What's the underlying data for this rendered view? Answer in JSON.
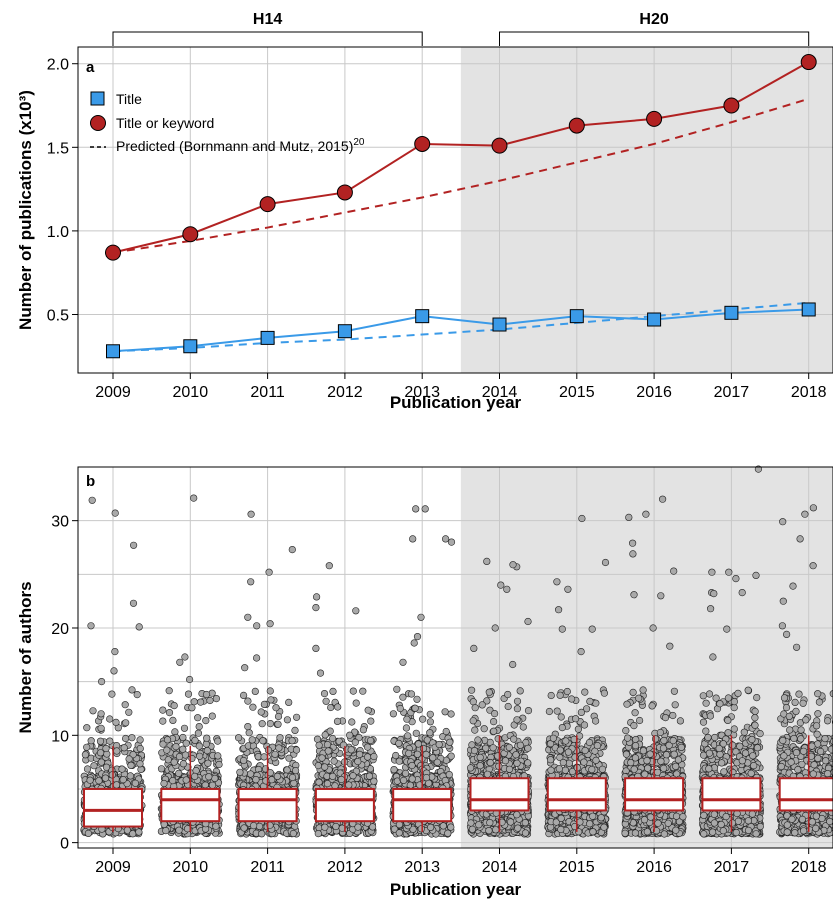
{
  "chart_data": [
    {
      "panel": "a",
      "type": "line",
      "xlabel": "Publication year",
      "ylabel": "Number of publications (x10³)",
      "x": [
        2009,
        2010,
        2011,
        2012,
        2013,
        2014,
        2015,
        2016,
        2017,
        2018
      ],
      "ylim": [
        0.15,
        2.1
      ],
      "yticks": [
        0.5,
        1.0,
        1.5,
        2.0
      ],
      "ytick_labels": [
        "0.5",
        "1.0",
        "1.5",
        "2.0"
      ],
      "grid": true,
      "shaded_range": [
        2013.5,
        2018.3
      ],
      "brackets": [
        {
          "label": "H14",
          "from": 2009,
          "to": 2013
        },
        {
          "label": "H20",
          "from": 2014,
          "to": 2018
        }
      ],
      "legend_position": "top-left",
      "series": [
        {
          "name": "Title",
          "marker": "square",
          "color": "#3a9ae8",
          "values": [
            0.28,
            0.31,
            0.36,
            0.4,
            0.49,
            0.44,
            0.49,
            0.47,
            0.51,
            0.53
          ]
        },
        {
          "name": "Title or keyword",
          "marker": "circle",
          "color": "#b22222",
          "values": [
            0.87,
            0.98,
            1.16,
            1.23,
            1.52,
            1.51,
            1.63,
            1.67,
            1.75,
            2.01
          ]
        },
        {
          "role": "predicted",
          "style": "dashed",
          "color": "#b22222",
          "values": [
            0.87,
            0.94,
            1.02,
            1.11,
            1.2,
            1.3,
            1.41,
            1.52,
            1.65,
            1.79
          ]
        },
        {
          "role": "predicted",
          "style": "dashed",
          "color": "#3a9ae8",
          "values": [
            0.28,
            0.3,
            0.33,
            0.35,
            0.38,
            0.41,
            0.45,
            0.49,
            0.53,
            0.57
          ]
        }
      ],
      "legend": {
        "title_label": "Title",
        "keyword_label": "Title or keyword",
        "predicted_label": "Predicted (Bornmann and Mutz, 2015)",
        "predicted_sup": "20"
      }
    },
    {
      "panel": "b",
      "type": "scatter",
      "subtype": "jittered points with boxplots",
      "xlabel": "Publication year",
      "ylabel": "Number of authors",
      "categories": [
        "2009",
        "2010",
        "2011",
        "2012",
        "2013",
        "2014",
        "2015",
        "2016",
        "2017",
        "2018"
      ],
      "ylim": [
        -0.5,
        35
      ],
      "yticks": [
        0,
        10,
        20,
        30
      ],
      "grid": true,
      "shaded_range": [
        2013.5,
        2018.3
      ],
      "box_color": "#b22222",
      "point_color": "#a9a9a9",
      "points_per_year": [
        600,
        650,
        700,
        750,
        900,
        1100,
        1150,
        1150,
        1150,
        1200
      ],
      "boxes": [
        {
          "category": "2009",
          "q1": 1.5,
          "median": 3,
          "q3": 5,
          "whisker_low": 1,
          "whisker_high": 9
        },
        {
          "category": "2010",
          "q1": 2,
          "median": 4,
          "q3": 5,
          "whisker_low": 1,
          "whisker_high": 9
        },
        {
          "category": "2011",
          "q1": 2,
          "median": 4,
          "q3": 5,
          "whisker_low": 1,
          "whisker_high": 9
        },
        {
          "category": "2012",
          "q1": 2,
          "median": 4,
          "q3": 5,
          "whisker_low": 1,
          "whisker_high": 9
        },
        {
          "category": "2013",
          "q1": 2,
          "median": 4,
          "q3": 5,
          "whisker_low": 1,
          "whisker_high": 9
        },
        {
          "category": "2014",
          "q1": 3,
          "median": 4,
          "q3": 6,
          "whisker_low": 1,
          "whisker_high": 10
        },
        {
          "category": "2015",
          "q1": 3,
          "median": 4,
          "q3": 6,
          "whisker_low": 1,
          "whisker_high": 10
        },
        {
          "category": "2016",
          "q1": 3,
          "median": 4,
          "q3": 6,
          "whisker_low": 1,
          "whisker_high": 10
        },
        {
          "category": "2017",
          "q1": 3,
          "median": 4,
          "q3": 6,
          "whisker_low": 1,
          "whisker_high": 10
        },
        {
          "category": "2018",
          "q1": 3,
          "median": 4,
          "q3": 6,
          "whisker_low": 1,
          "whisker_high": 10
        }
      ],
      "outliers": [
        [
          2009,
          22.3
        ],
        [
          2009,
          27.7
        ],
        [
          2009,
          20.1
        ],
        [
          2009,
          30.7
        ],
        [
          2009,
          20.2
        ],
        [
          2009,
          31.9
        ],
        [
          2009,
          17.8
        ],
        [
          2009,
          15.0
        ],
        [
          2009,
          16.0
        ],
        [
          2010,
          32.1
        ],
        [
          2010,
          17.3
        ],
        [
          2010,
          16.8
        ],
        [
          2010,
          15.2
        ],
        [
          2010,
          13.8
        ],
        [
          2011,
          25.2
        ],
        [
          2011,
          21.0
        ],
        [
          2011,
          20.2
        ],
        [
          2011,
          24.3
        ],
        [
          2011,
          20.4
        ],
        [
          2011,
          30.6
        ],
        [
          2011,
          27.3
        ],
        [
          2011,
          17.2
        ],
        [
          2011,
          16.3
        ],
        [
          2012,
          25.8
        ],
        [
          2012,
          22.9
        ],
        [
          2012,
          21.6
        ],
        [
          2012,
          21.9
        ],
        [
          2012,
          18.1
        ],
        [
          2012,
          15.8
        ],
        [
          2013,
          21.0
        ],
        [
          2013,
          28.0
        ],
        [
          2013,
          31.1
        ],
        [
          2013,
          31.1
        ],
        [
          2013,
          28.3
        ],
        [
          2013,
          28.3
        ],
        [
          2013,
          19.2
        ],
        [
          2013,
          18.6
        ],
        [
          2013,
          16.8
        ],
        [
          2014,
          25.7
        ],
        [
          2014,
          23.6
        ],
        [
          2014,
          20.6
        ],
        [
          2014,
          20.0
        ],
        [
          2014,
          26.2
        ],
        [
          2014,
          25.9
        ],
        [
          2014,
          24.0
        ],
        [
          2014,
          18.1
        ],
        [
          2014,
          16.6
        ],
        [
          2015,
          23.6
        ],
        [
          2015,
          21.7
        ],
        [
          2015,
          26.1
        ],
        [
          2015,
          24.3
        ],
        [
          2015,
          30.2
        ],
        [
          2015,
          19.9
        ],
        [
          2015,
          19.9
        ],
        [
          2015,
          17.8
        ],
        [
          2016,
          30.3
        ],
        [
          2016,
          32.0
        ],
        [
          2016,
          27.9
        ],
        [
          2016,
          30.6
        ],
        [
          2016,
          20.0
        ],
        [
          2016,
          23.0
        ],
        [
          2016,
          23.1
        ],
        [
          2016,
          26.9
        ],
        [
          2016,
          25.3
        ],
        [
          2016,
          18.3
        ],
        [
          2017,
          34.8
        ],
        [
          2017,
          24.6
        ],
        [
          2017,
          25.2
        ],
        [
          2017,
          23.3
        ],
        [
          2017,
          23.3
        ],
        [
          2017,
          21.8
        ],
        [
          2017,
          25.2
        ],
        [
          2017,
          23.2
        ],
        [
          2017,
          19.9
        ],
        [
          2017,
          24.9
        ],
        [
          2017,
          17.3
        ],
        [
          2018,
          25.8
        ],
        [
          2018,
          31.2
        ],
        [
          2018,
          23.9
        ],
        [
          2018,
          30.6
        ],
        [
          2018,
          28.3
        ],
        [
          2018,
          29.9
        ],
        [
          2018,
          19.4
        ],
        [
          2018,
          22.5
        ],
        [
          2018,
          20.2
        ],
        [
          2018,
          18.2
        ]
      ]
    }
  ]
}
